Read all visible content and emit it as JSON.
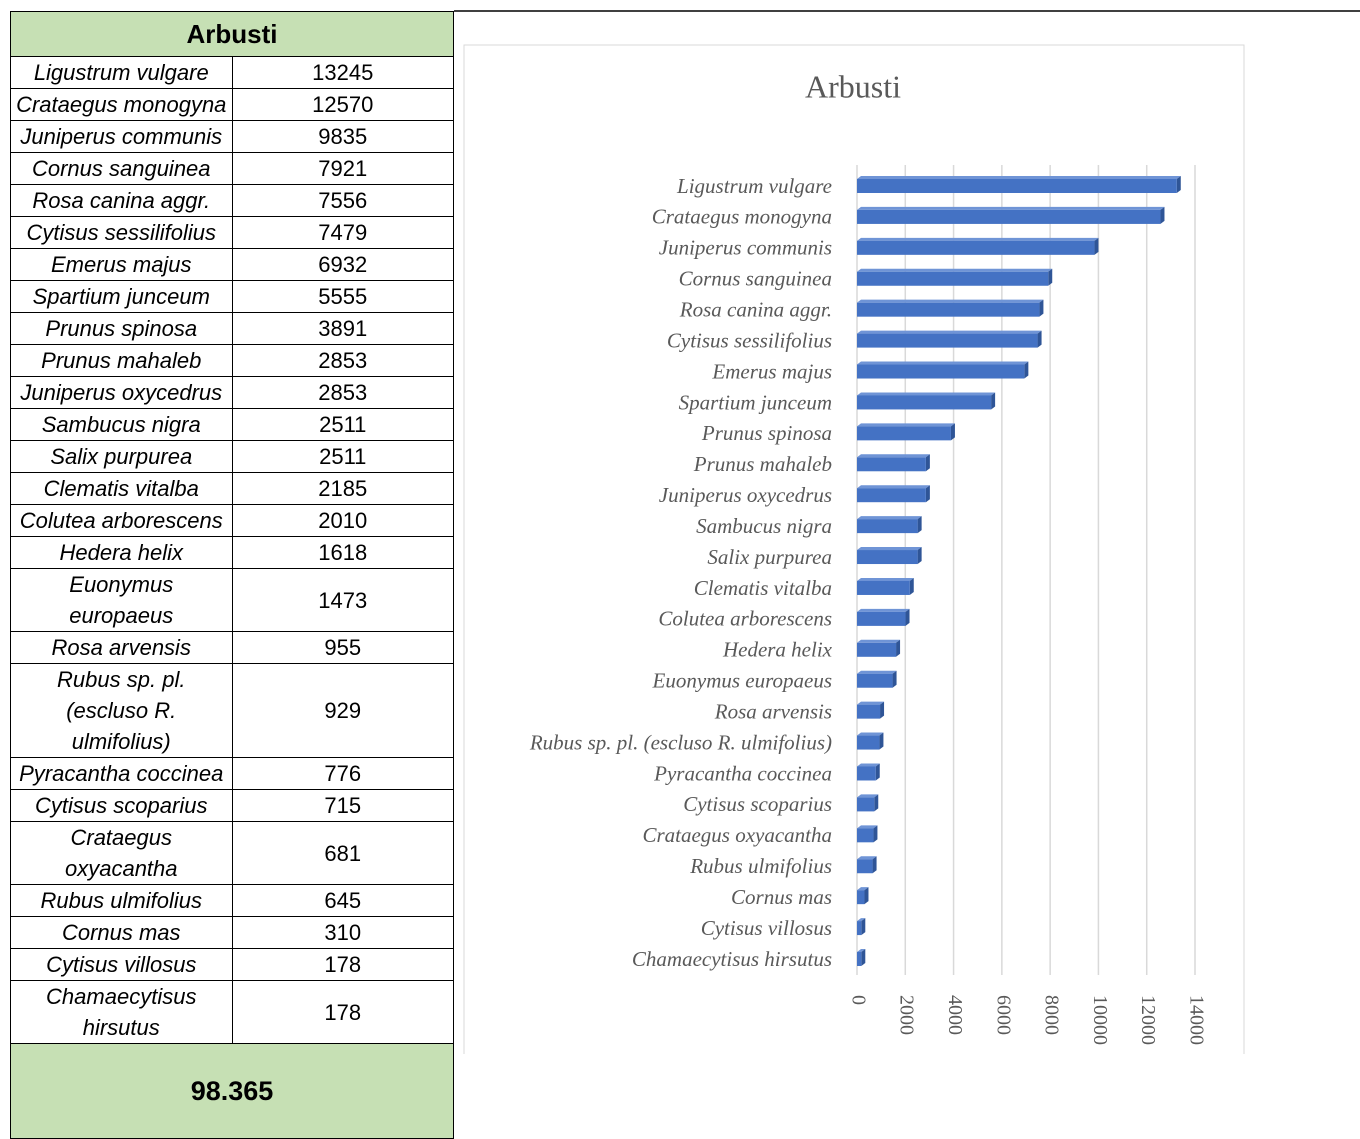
{
  "chart_data": {
    "type": "bar",
    "orientation": "horizontal",
    "title": "Arbusti",
    "categories": [
      "Ligustrum vulgare",
      "Crataegus monogyna",
      "Juniperus communis",
      "Cornus sanguinea",
      "Rosa canina aggr.",
      "Cytisus sessilifolius",
      "Emerus majus",
      "Spartium junceum",
      "Prunus spinosa",
      "Prunus mahaleb",
      "Juniperus oxycedrus",
      "Sambucus nigra",
      "Salix purpurea",
      "Clematis vitalba",
      "Colutea arborescens",
      "Hedera helix",
      "Euonymus europaeus",
      "Rosa arvensis",
      "Rubus sp. pl. (escluso R. ulmifolius)",
      "Pyracantha coccinea",
      "Cytisus scoparius",
      "Crataegus oxyacantha",
      "Rubus ulmifolius",
      "Cornus mas",
      "Cytisus villosus",
      "Chamaecytisus hirsutus"
    ],
    "values": [
      13245,
      12570,
      9835,
      7921,
      7556,
      7479,
      6932,
      5555,
      3891,
      2853,
      2853,
      2511,
      2511,
      2185,
      2010,
      1618,
      1473,
      955,
      929,
      776,
      715,
      681,
      645,
      310,
      178,
      178
    ],
    "color": "#4472c4",
    "xlim": [
      0,
      14000
    ],
    "xticks": [
      0,
      2000,
      4000,
      6000,
      8000,
      10000,
      12000,
      14000
    ],
    "grid": true
  },
  "table": {
    "total": "98.365"
  }
}
